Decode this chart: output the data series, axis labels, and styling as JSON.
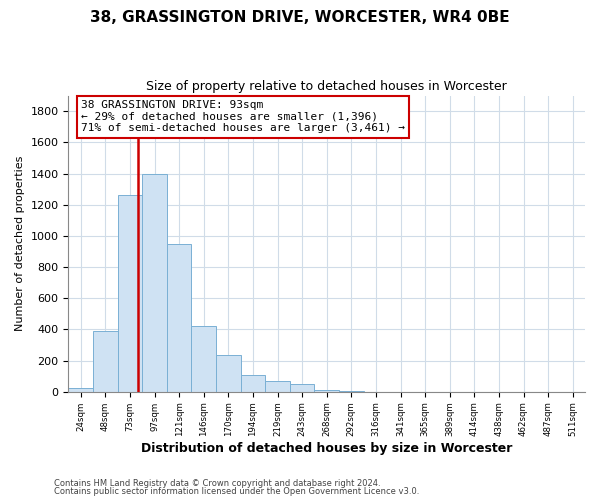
{
  "title": "38, GRASSINGTON DRIVE, WORCESTER, WR4 0BE",
  "subtitle": "Size of property relative to detached houses in Worcester",
  "xlabel": "Distribution of detached houses by size in Worcester",
  "ylabel": "Number of detached properties",
  "bar_color": "#cfe2f3",
  "bar_edge_color": "#7ab0d4",
  "bin_labels": [
    "24sqm",
    "48sqm",
    "73sqm",
    "97sqm",
    "121sqm",
    "146sqm",
    "170sqm",
    "194sqm",
    "219sqm",
    "243sqm",
    "268sqm",
    "292sqm",
    "316sqm",
    "341sqm",
    "365sqm",
    "389sqm",
    "414sqm",
    "438sqm",
    "462sqm",
    "487sqm",
    "511sqm"
  ],
  "bar_heights": [
    25,
    390,
    1265,
    1400,
    950,
    420,
    235,
    110,
    70,
    50,
    15,
    5,
    0,
    0,
    0,
    0,
    0,
    0,
    0,
    0,
    0
  ],
  "property_line_color": "#cc0000",
  "ylim": [
    0,
    1900
  ],
  "yticks": [
    0,
    200,
    400,
    600,
    800,
    1000,
    1200,
    1400,
    1600,
    1800
  ],
  "annotation_title": "38 GRASSINGTON DRIVE: 93sqm",
  "annotation_line1": "← 29% of detached houses are smaller (1,396)",
  "annotation_line2": "71% of semi-detached houses are larger (3,461) →",
  "annotation_box_color": "#ffffff",
  "annotation_box_edge": "#cc0000",
  "footer_line1": "Contains HM Land Registry data © Crown copyright and database right 2024.",
  "footer_line2": "Contains public sector information licensed under the Open Government Licence v3.0.",
  "background_color": "#ffffff",
  "grid_color": "#d0dce8",
  "property_sqm": 93,
  "bin_edges": [
    24,
    48,
    73,
    97,
    121,
    146,
    170,
    194,
    219,
    243,
    268,
    292,
    316,
    341,
    365,
    389,
    414,
    438,
    462,
    487,
    511
  ]
}
